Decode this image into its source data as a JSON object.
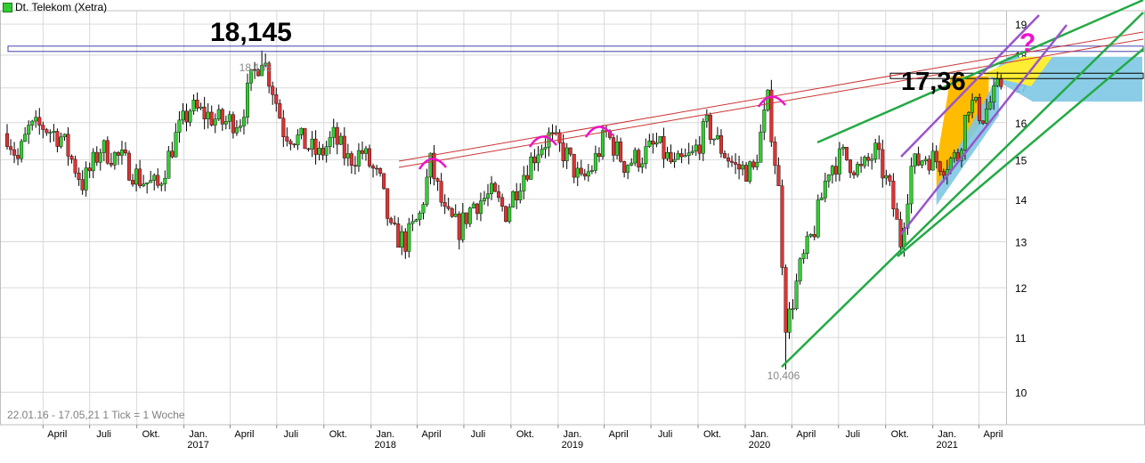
{
  "legend": {
    "label": "Dt. Telekom (Xetra)",
    "color": "#33cc33"
  },
  "range_label": "22.01.16 - 17.05,21   1 Tick = 1 Woche",
  "chart_data": {
    "type": "candlestick",
    "ylim": [
      9.45,
      19.45
    ],
    "scale": "log",
    "y_ticks": [
      10,
      11,
      12,
      13,
      14,
      15,
      16,
      17,
      18,
      19
    ],
    "x_tick_labels": [
      {
        "label": "April",
        "date": "2016-04"
      },
      {
        "label": "Juli",
        "date": "2016-07"
      },
      {
        "label": "Okt.",
        "date": "2016-10"
      },
      {
        "label": "Jan.",
        "date": "2017-01",
        "year": "2017"
      },
      {
        "label": "April",
        "date": "2017-04"
      },
      {
        "label": "Juli",
        "date": "2017-07"
      },
      {
        "label": "Okt.",
        "date": "2017-10"
      },
      {
        "label": "Jan.",
        "date": "2018-01",
        "year": "2018"
      },
      {
        "label": "April",
        "date": "2018-04"
      },
      {
        "label": "Juli",
        "date": "2018-07"
      },
      {
        "label": "Okt.",
        "date": "2018-10"
      },
      {
        "label": "Jan.",
        "date": "2019-01",
        "year": "2019"
      },
      {
        "label": "April",
        "date": "2019-04"
      },
      {
        "label": "Juli",
        "date": "2019-07"
      },
      {
        "label": "Okt.",
        "date": "2019-10"
      },
      {
        "label": "Jan.",
        "date": "2020-01",
        "year": "2020"
      },
      {
        "label": "April",
        "date": "2020-04"
      },
      {
        "label": "Juli",
        "date": "2020-07"
      },
      {
        "label": "Okt.",
        "date": "2020-10"
      },
      {
        "label": "Jan.",
        "date": "2021-01",
        "year": "2021"
      },
      {
        "label": "April",
        "date": "2021-04"
      }
    ],
    "price_path": [
      [
        "2016-01-22",
        15.7
      ],
      [
        "2016-02-12",
        15.0
      ],
      [
        "2016-03-04",
        15.8
      ],
      [
        "2016-04-01",
        15.9
      ],
      [
        "2016-05-06",
        15.6
      ],
      [
        "2016-06-17",
        14.4
      ],
      [
        "2016-07-01",
        14.7
      ],
      [
        "2016-07-22",
        15.3
      ],
      [
        "2016-09-02",
        15.0
      ],
      [
        "2016-10-07",
        14.5
      ],
      [
        "2016-11-11",
        14.3
      ],
      [
        "2016-12-16",
        15.6
      ],
      [
        "2017-01-13",
        16.4
      ],
      [
        "2017-02-17",
        16.2
      ],
      [
        "2017-03-17",
        16.0
      ],
      [
        "2017-04-21",
        16.1
      ],
      [
        "2017-05-12",
        17.2
      ],
      [
        "2017-06-02",
        18.0
      ],
      [
        "2017-06-23",
        17.0
      ],
      [
        "2017-07-14",
        15.8
      ],
      [
        "2017-08-18",
        15.5
      ],
      [
        "2017-09-22",
        15.1
      ],
      [
        "2017-10-20",
        15.6
      ],
      [
        "2017-11-17",
        15.0
      ],
      [
        "2017-12-15",
        15.2
      ],
      [
        "2018-01-19",
        14.4
      ],
      [
        "2018-02-09",
        13.2
      ],
      [
        "2018-03-09",
        13.0
      ],
      [
        "2018-04-06",
        13.6
      ],
      [
        "2018-04-27",
        14.9
      ],
      [
        "2018-05-25",
        13.6
      ],
      [
        "2018-06-22",
        13.3
      ],
      [
        "2018-07-20",
        13.9
      ],
      [
        "2018-08-24",
        14.1
      ],
      [
        "2018-09-21",
        13.7
      ],
      [
        "2018-10-19",
        14.5
      ],
      [
        "2018-11-23",
        15.3
      ],
      [
        "2018-12-14",
        15.6
      ],
      [
        "2019-01-18",
        15.1
      ],
      [
        "2019-02-15",
        14.4
      ],
      [
        "2019-03-08",
        14.8
      ],
      [
        "2019-04-05",
        15.7
      ],
      [
        "2019-05-10",
        14.9
      ],
      [
        "2019-06-14",
        15.1
      ],
      [
        "2019-07-12",
        15.4
      ],
      [
        "2019-08-16",
        14.8
      ],
      [
        "2019-09-20",
        15.1
      ],
      [
        "2019-10-18",
        15.9
      ],
      [
        "2019-11-15",
        15.3
      ],
      [
        "2019-12-13",
        14.8
      ],
      [
        "2020-01-17",
        14.7
      ],
      [
        "2020-02-14",
        16.6
      ],
      [
        "2020-03-06",
        14.2
      ],
      [
        "2020-03-20",
        11.1
      ],
      [
        "2020-04-17",
        12.4
      ],
      [
        "2020-05-15",
        13.3
      ],
      [
        "2020-06-12",
        14.8
      ],
      [
        "2020-07-10",
        15.1
      ],
      [
        "2020-08-14",
        14.7
      ],
      [
        "2020-09-11",
        15.2
      ],
      [
        "2020-10-09",
        14.2
      ],
      [
        "2020-10-30",
        13.0
      ],
      [
        "2020-11-20",
        14.8
      ],
      [
        "2020-12-18",
        15.1
      ],
      [
        "2021-01-22",
        14.9
      ],
      [
        "2021-02-19",
        15.1
      ],
      [
        "2021-03-12",
        16.6
      ],
      [
        "2021-04-09",
        16.2
      ],
      [
        "2021-05-17",
        17.2
      ]
    ],
    "annotations": {
      "high_label": "18,145",
      "high_small": "18,145",
      "high_value": 18.145,
      "high_date": "2017-06-02",
      "low_label": "10,406",
      "low_value": 10.406,
      "low_date": "2020-03-20",
      "current_label": "17,36",
      "current_value": 17.36,
      "question": "?"
    },
    "colors": {
      "up": "#33cc33",
      "down": "#dd3333",
      "wick": "#000000",
      "grid": "#d9d9d9",
      "support": "#22aa44",
      "resistance": "#cc3333",
      "channel": "#9955cc",
      "arc": "#ee11cc",
      "fill_orange": "#ffbb00",
      "fill_yellow": "#ffee33",
      "fill_blue": "#7ec8e3",
      "hline_blue": "#4444aa"
    }
  }
}
